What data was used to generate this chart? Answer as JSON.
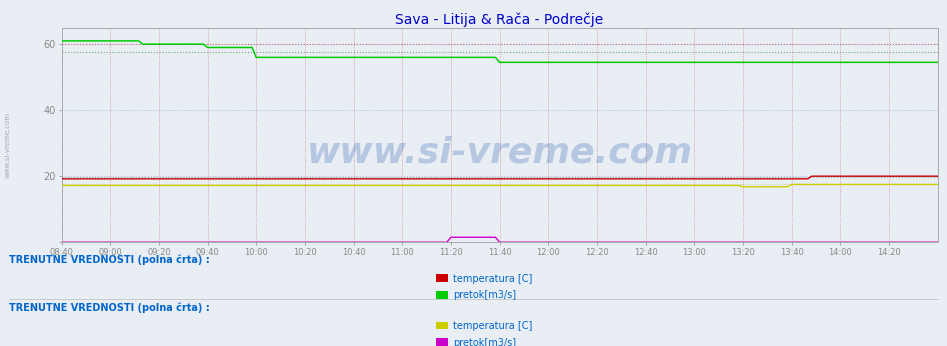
{
  "title": "Sava - Litija & Rača - Podrečje",
  "title_color": "#0000cc",
  "title_fontsize": 10,
  "bg_color": "#e8eef4",
  "plot_bg_color": "#e8eef4",
  "ylim": [
    0,
    65
  ],
  "yticks": [
    0,
    20,
    40,
    60
  ],
  "xtick_labels": [
    "08:40",
    "09:00",
    "09:20",
    "09:40",
    "10:00",
    "10:20",
    "10:40",
    "11:00",
    "11:20",
    "11:40",
    "12:00",
    "12:20",
    "12:40",
    "13:00",
    "13:20",
    "13:40",
    "14:00",
    "14:20"
  ],
  "xtick_positions": [
    0,
    12,
    24,
    36,
    48,
    60,
    72,
    84,
    96,
    108,
    120,
    132,
    144,
    156,
    168,
    180,
    192,
    204
  ],
  "legend1_title": "TRENUTNE VREDNOSTI (polna črta) :",
  "legend2_title": "TRENUTNE VREDNOSTI (polna črta) :",
  "legend1_items": [
    {
      "label": "temperatura [C]",
      "color": "#cc0000"
    },
    {
      "label": "pretok[m3/s]",
      "color": "#00cc00"
    }
  ],
  "legend2_items": [
    {
      "label": "temperatura [C]",
      "color": "#cccc00"
    },
    {
      "label": "pretok[m3/s]",
      "color": "#cc00cc"
    }
  ],
  "watermark": "www.si-vreme.com",
  "watermark_color": "#2255aa",
  "watermark_alpha": 0.25,
  "grid_color_v": "#cc4444",
  "grid_color_h": "#6699bb",
  "line_color_red": "#cc0000",
  "line_color_green": "#00cc00",
  "line_color_yellow": "#cccc00",
  "line_color_magenta": "#cc00cc",
  "ref_line_red": "#cc0000",
  "ref_line_green": "#006600",
  "ref_line_black": "#444444",
  "ref_line_yellow": "#aaaa00"
}
